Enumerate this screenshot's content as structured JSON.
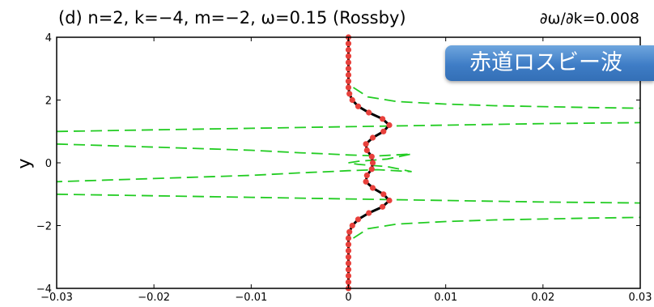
{
  "chart_data": {
    "type": "line",
    "title": "(d) n=2, k=−4, m=−2, ω=0.15 (Rossby)",
    "subtitle": "∂ω/∂k=0.008",
    "xlabel": "",
    "ylabel": "y",
    "xlim": [
      -0.03,
      0.03
    ],
    "ylim": [
      -4,
      4
    ],
    "xticks": [
      "−0.03",
      "−0.02",
      "−0.01",
      "0",
      "0.01",
      "0.02",
      "0.03"
    ],
    "yticks": [
      "−4",
      "−2",
      "0",
      "2",
      "4"
    ],
    "grid": false,
    "colors": {
      "curve": "#000000",
      "markers": "#e8413c",
      "dashed": "#22cc22"
    },
    "series": [
      {
        "style": "solid-with-markers",
        "points": [
          [
            0.0,
            -4.0
          ],
          [
            0.0,
            -3.8
          ],
          [
            0.0,
            -3.6
          ],
          [
            0.0,
            -3.4
          ],
          [
            0.0,
            -3.2
          ],
          [
            0.0,
            -3.0
          ],
          [
            0.0,
            -2.8
          ],
          [
            0.0,
            -2.6
          ],
          [
            0.0,
            -2.4
          ],
          [
            0.0001,
            -2.2
          ],
          [
            0.0004,
            -2.0
          ],
          [
            0.001,
            -1.8
          ],
          [
            0.0021,
            -1.6
          ],
          [
            0.0035,
            -1.4
          ],
          [
            0.0042,
            -1.2
          ],
          [
            0.0036,
            -1.0
          ],
          [
            0.0025,
            -0.8
          ],
          [
            0.0018,
            -0.6
          ],
          [
            0.0019,
            -0.4
          ],
          [
            0.0024,
            -0.2
          ],
          [
            0.0025,
            0.0
          ],
          [
            0.0024,
            0.2
          ],
          [
            0.0019,
            0.4
          ],
          [
            0.0018,
            0.6
          ],
          [
            0.0025,
            0.8
          ],
          [
            0.0036,
            1.0
          ],
          [
            0.0042,
            1.2
          ],
          [
            0.0035,
            1.4
          ],
          [
            0.0021,
            1.6
          ],
          [
            0.001,
            1.8
          ],
          [
            0.0004,
            2.0
          ],
          [
            0.0001,
            2.2
          ],
          [
            0.0,
            2.4
          ],
          [
            0.0,
            2.6
          ],
          [
            0.0,
            2.8
          ],
          [
            0.0,
            3.0
          ],
          [
            0.0,
            3.2
          ],
          [
            0.0,
            3.4
          ],
          [
            0.0,
            3.6
          ],
          [
            0.0,
            3.8
          ],
          [
            0.0,
            4.0
          ]
        ]
      },
      {
        "style": "dashed",
        "segments": [
          [
            [
              0.0005,
              2.4
            ],
            [
              0.002,
              2.1
            ],
            [
              0.005,
              1.95
            ],
            [
              0.01,
              1.87
            ],
            [
              0.015,
              1.82
            ],
            [
              0.02,
              1.79
            ],
            [
              0.025,
              1.76
            ],
            [
              0.03,
              1.74
            ]
          ],
          [
            [
              -0.03,
              1.0
            ],
            [
              -0.02,
              1.05
            ],
            [
              -0.01,
              1.1
            ],
            [
              0.0,
              1.15
            ],
            [
              0.01,
              1.2
            ],
            [
              0.02,
              1.25
            ],
            [
              0.03,
              1.28
            ]
          ],
          [
            [
              -0.03,
              0.6
            ],
            [
              -0.02,
              0.5
            ],
            [
              -0.01,
              0.4
            ],
            [
              -0.005,
              0.32
            ],
            [
              -0.002,
              0.28
            ],
            [
              0.0,
              0.25
            ],
            [
              0.003,
              0.22
            ],
            [
              0.0065,
              0.28
            ],
            [
              0.004,
              0.12
            ],
            [
              0.001,
              0.05
            ],
            [
              0.0,
              0.0
            ],
            [
              0.001,
              -0.05
            ],
            [
              0.004,
              -0.12
            ],
            [
              0.0065,
              -0.28
            ],
            [
              0.003,
              -0.22
            ],
            [
              0.0,
              -0.25
            ],
            [
              -0.002,
              -0.28
            ],
            [
              -0.005,
              -0.32
            ],
            [
              -0.01,
              -0.4
            ],
            [
              -0.02,
              -0.5
            ],
            [
              -0.03,
              -0.6
            ]
          ],
          [
            [
              -0.03,
              -1.0
            ],
            [
              -0.02,
              -1.05
            ],
            [
              -0.01,
              -1.1
            ],
            [
              0.0,
              -1.15
            ],
            [
              0.01,
              -1.2
            ],
            [
              0.02,
              -1.25
            ],
            [
              0.03,
              -1.28
            ]
          ],
          [
            [
              0.0005,
              -2.4
            ],
            [
              0.002,
              -2.1
            ],
            [
              0.005,
              -1.95
            ],
            [
              0.01,
              -1.87
            ],
            [
              0.015,
              -1.82
            ],
            [
              0.02,
              -1.79
            ],
            [
              0.025,
              -1.76
            ],
            [
              0.03,
              -1.74
            ]
          ]
        ]
      }
    ]
  },
  "banner": {
    "text": "赤道ロスビー波"
  }
}
